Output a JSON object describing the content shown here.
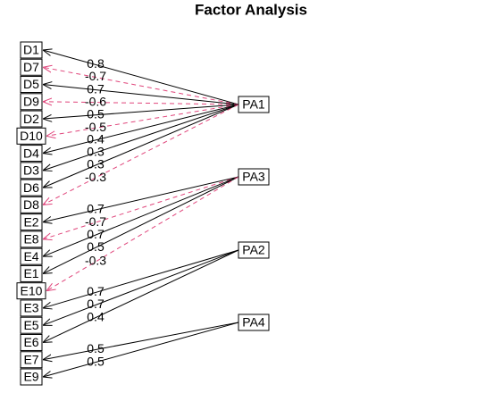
{
  "title": "Factor Analysis",
  "variables": [
    "D1",
    "D7",
    "D5",
    "D9",
    "D2",
    "D10",
    "D4",
    "D3",
    "D6",
    "D8",
    "E2",
    "E8",
    "E4",
    "E1",
    "E10",
    "E3",
    "E5",
    "E6",
    "E7",
    "E9"
  ],
  "factors": [
    "PA1",
    "PA3",
    "PA2",
    "PA4"
  ],
  "edges": [
    {
      "factor": 0,
      "variable": 0,
      "loading": 0.8
    },
    {
      "factor": 0,
      "variable": 1,
      "loading": -0.7
    },
    {
      "factor": 0,
      "variable": 2,
      "loading": 0.7
    },
    {
      "factor": 0,
      "variable": 3,
      "loading": -0.6
    },
    {
      "factor": 0,
      "variable": 4,
      "loading": 0.5
    },
    {
      "factor": 0,
      "variable": 5,
      "loading": -0.5
    },
    {
      "factor": 0,
      "variable": 6,
      "loading": 0.4
    },
    {
      "factor": 0,
      "variable": 7,
      "loading": 0.3
    },
    {
      "factor": 0,
      "variable": 8,
      "loading": 0.3
    },
    {
      "factor": 0,
      "variable": 9,
      "loading": -0.3
    },
    {
      "factor": 1,
      "variable": 10,
      "loading": 0.7
    },
    {
      "factor": 1,
      "variable": 11,
      "loading": -0.7
    },
    {
      "factor": 1,
      "variable": 12,
      "loading": 0.7
    },
    {
      "factor": 1,
      "variable": 13,
      "loading": 0.5
    },
    {
      "factor": 1,
      "variable": 14,
      "loading": -0.3
    },
    {
      "factor": 2,
      "variable": 15,
      "loading": 0.7
    },
    {
      "factor": 2,
      "variable": 16,
      "loading": 0.7
    },
    {
      "factor": 2,
      "variable": 17,
      "loading": 0.4
    },
    {
      "factor": 3,
      "variable": 18,
      "loading": 0.5
    },
    {
      "factor": 3,
      "variable": 19,
      "loading": 0.5
    }
  ]
}
